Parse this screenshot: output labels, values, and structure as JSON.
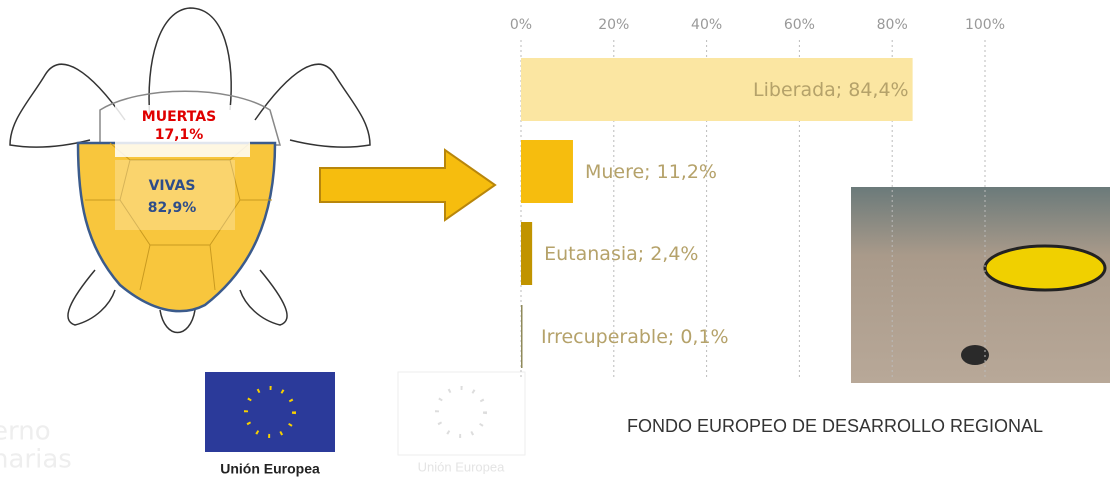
{
  "chart_data": {
    "type": "bar",
    "orientation": "horizontal",
    "values": [
      84.4,
      11.2,
      2.4,
      0.1
    ],
    "value_labels": [
      "Liberada; 84,4%",
      "Muere; 11,2%",
      "Eutanasia; 2,4%",
      "Irrecuperable; 0,1%"
    ],
    "colors": [
      "#fbe6a2",
      "#f6bd0e",
      "#c19400",
      "#8f8a5a"
    ],
    "xlim": [
      0,
      100
    ],
    "xticks": [
      {
        "value": 0,
        "label": "0%"
      },
      {
        "value": 20,
        "label": "20%"
      },
      {
        "value": 40,
        "label": "40%"
      },
      {
        "value": 60,
        "label": "60%"
      },
      {
        "value": 80,
        "label": "80%"
      },
      {
        "value": 100,
        "label": "100%"
      }
    ],
    "grid": true
  },
  "turtle": {
    "dead_label": "MUERTAS",
    "dead_value": "17,1%",
    "alive_label": "VIVAS",
    "alive_value": "82,9%"
  },
  "footer": {
    "fund": "FONDO EUROPEO DE DESARROLLO REGIONAL",
    "eu_logo": "Unión Europea",
    "eu_logo_faded": "Unión Europea",
    "left_logo": [
      "erno",
      "narias"
    ]
  }
}
